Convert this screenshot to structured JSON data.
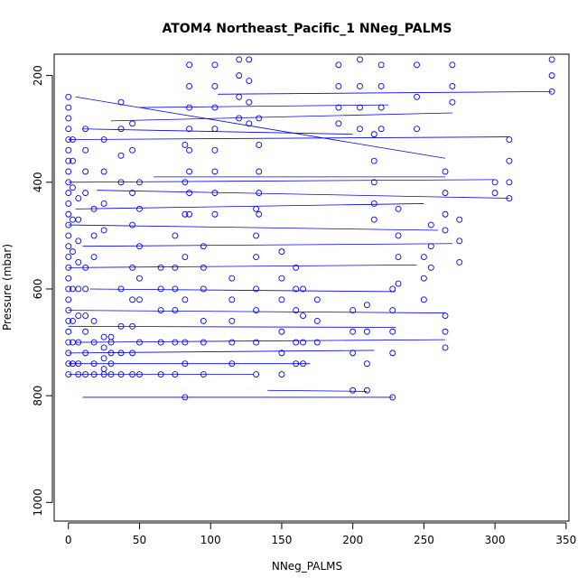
{
  "chart_data": {
    "type": "scatter",
    "title": "ATOM4 Northeast_Pacific_1 NNeg_PALMS",
    "xlabel": "NNeg_PALMS",
    "ylabel": "Pressure (mbar)",
    "xlim": [
      -10,
      352
    ],
    "ylim": [
      1035,
      160
    ],
    "y_reversed": true,
    "x_ticks": [
      0,
      50,
      100,
      150,
      200,
      250,
      300,
      350
    ],
    "y_ticks": [
      200,
      400,
      600,
      800,
      1000
    ],
    "grid": false,
    "legend": "none",
    "marker": "open-circle",
    "colors": {
      "series": "#0000ff",
      "axis": "#000000"
    },
    "connecting_lines": [
      {
        "from": [
          5,
          240
        ],
        "to": [
          265,
          355
        ]
      },
      {
        "from": [
          0,
          320
        ],
        "to": [
          310,
          315
        ]
      },
      {
        "from": [
          10,
          300
        ],
        "to": [
          200,
          310
        ]
      },
      {
        "from": [
          30,
          285
        ],
        "to": [
          270,
          270
        ]
      },
      {
        "from": [
          50,
          260
        ],
        "to": [
          225,
          255
        ]
      },
      {
        "from": [
          105,
          235
        ],
        "to": [
          340,
          230
        ]
      },
      {
        "from": [
          0,
          400
        ],
        "to": [
          300,
          395
        ]
      },
      {
        "from": [
          20,
          415
        ],
        "to": [
          310,
          430
        ]
      },
      {
        "from": [
          60,
          390
        ],
        "to": [
          265,
          390
        ]
      },
      {
        "from": [
          5,
          450
        ],
        "to": [
          250,
          440
        ]
      },
      {
        "from": [
          0,
          480
        ],
        "to": [
          260,
          490
        ]
      },
      {
        "from": [
          10,
          520
        ],
        "to": [
          270,
          515
        ]
      },
      {
        "from": [
          0,
          560
        ],
        "to": [
          245,
          555
        ]
      },
      {
        "from": [
          15,
          600
        ],
        "to": [
          230,
          605
        ]
      },
      {
        "from": [
          0,
          640
        ],
        "to": [
          265,
          645
        ]
      },
      {
        "from": [
          0,
          670
        ],
        "to": [
          230,
          672
        ]
      },
      {
        "from": [
          5,
          700
        ],
        "to": [
          265,
          695
        ]
      },
      {
        "from": [
          0,
          720
        ],
        "to": [
          215,
          715
        ]
      },
      {
        "from": [
          0,
          740
        ],
        "to": [
          170,
          740
        ]
      },
      {
        "from": [
          0,
          760
        ],
        "to": [
          130,
          760
        ]
      },
      {
        "from": [
          10,
          803
        ],
        "to": [
          228,
          803
        ]
      },
      {
        "from": [
          140,
          790
        ],
        "to": [
          210,
          792
        ]
      }
    ],
    "series": [
      {
        "points": [
          [
            0,
            240
          ],
          [
            0,
            260
          ],
          [
            0,
            280
          ],
          [
            0,
            300
          ],
          [
            0,
            320
          ],
          [
            0,
            340
          ],
          [
            0,
            360
          ],
          [
            0,
            380
          ],
          [
            0,
            400
          ],
          [
            0,
            420
          ],
          [
            0,
            440
          ],
          [
            0,
            460
          ],
          [
            0,
            480
          ],
          [
            0,
            500
          ],
          [
            0,
            520
          ],
          [
            0,
            540
          ],
          [
            0,
            560
          ],
          [
            0,
            580
          ],
          [
            0,
            600
          ],
          [
            0,
            620
          ],
          [
            0,
            640
          ],
          [
            0,
            660
          ],
          [
            0,
            680
          ],
          [
            0,
            700
          ],
          [
            0,
            720
          ],
          [
            0,
            740
          ],
          [
            0,
            760
          ],
          [
            3,
            320
          ],
          [
            3,
            360
          ],
          [
            3,
            410
          ],
          [
            3,
            470
          ],
          [
            3,
            530
          ],
          [
            3,
            600
          ],
          [
            3,
            660
          ],
          [
            3,
            700
          ],
          [
            3,
            740
          ],
          [
            7,
            430
          ],
          [
            7,
            470
          ],
          [
            7,
            510
          ],
          [
            7,
            550
          ],
          [
            7,
            600
          ],
          [
            7,
            650
          ],
          [
            7,
            700
          ],
          [
            7,
            740
          ],
          [
            7,
            760
          ],
          [
            12,
            300
          ],
          [
            12,
            340
          ],
          [
            12,
            380
          ],
          [
            12,
            420
          ],
          [
            12,
            560
          ],
          [
            12,
            600
          ],
          [
            12,
            650
          ],
          [
            12,
            680
          ],
          [
            12,
            720
          ],
          [
            12,
            760
          ],
          [
            18,
            450
          ],
          [
            18,
            500
          ],
          [
            18,
            540
          ],
          [
            18,
            660
          ],
          [
            18,
            700
          ],
          [
            18,
            740
          ],
          [
            18,
            760
          ],
          [
            25,
            320
          ],
          [
            25,
            380
          ],
          [
            25,
            440
          ],
          [
            25,
            490
          ],
          [
            25,
            690
          ],
          [
            25,
            710
          ],
          [
            25,
            730
          ],
          [
            25,
            750
          ],
          [
            25,
            760
          ],
          [
            30,
            690
          ],
          [
            30,
            700
          ],
          [
            30,
            720
          ],
          [
            30,
            740
          ],
          [
            30,
            760
          ],
          [
            37,
            250
          ],
          [
            37,
            300
          ],
          [
            37,
            350
          ],
          [
            37,
            400
          ],
          [
            37,
            600
          ],
          [
            37,
            670
          ],
          [
            37,
            720
          ],
          [
            37,
            760
          ],
          [
            45,
            290
          ],
          [
            45,
            340
          ],
          [
            45,
            420
          ],
          [
            45,
            480
          ],
          [
            45,
            560
          ],
          [
            45,
            620
          ],
          [
            45,
            670
          ],
          [
            45,
            720
          ],
          [
            45,
            760
          ],
          [
            50,
            400
          ],
          [
            50,
            450
          ],
          [
            50,
            520
          ],
          [
            50,
            580
          ],
          [
            50,
            620
          ],
          [
            50,
            700
          ],
          [
            50,
            760
          ],
          [
            65,
            560
          ],
          [
            65,
            600
          ],
          [
            65,
            640
          ],
          [
            65,
            700
          ],
          [
            65,
            760
          ],
          [
            75,
            500
          ],
          [
            75,
            560
          ],
          [
            75,
            600
          ],
          [
            75,
            640
          ],
          [
            75,
            700
          ],
          [
            75,
            760
          ],
          [
            82,
            330
          ],
          [
            82,
            400
          ],
          [
            82,
            460
          ],
          [
            82,
            540
          ],
          [
            82,
            620
          ],
          [
            82,
            700
          ],
          [
            82,
            740
          ],
          [
            82,
            803
          ],
          [
            85,
            180
          ],
          [
            85,
            220
          ],
          [
            85,
            260
          ],
          [
            85,
            300
          ],
          [
            85,
            340
          ],
          [
            85,
            380
          ],
          [
            85,
            420
          ],
          [
            85,
            460
          ],
          [
            95,
            520
          ],
          [
            95,
            560
          ],
          [
            95,
            600
          ],
          [
            95,
            660
          ],
          [
            95,
            700
          ],
          [
            95,
            760
          ],
          [
            103,
            180
          ],
          [
            103,
            220
          ],
          [
            103,
            260
          ],
          [
            103,
            300
          ],
          [
            103,
            340
          ],
          [
            103,
            380
          ],
          [
            103,
            420
          ],
          [
            103,
            460
          ],
          [
            115,
            580
          ],
          [
            115,
            620
          ],
          [
            115,
            660
          ],
          [
            115,
            700
          ],
          [
            115,
            740
          ],
          [
            120,
            170
          ],
          [
            120,
            200
          ],
          [
            120,
            240
          ],
          [
            120,
            280
          ],
          [
            127,
            170
          ],
          [
            127,
            210
          ],
          [
            127,
            250
          ],
          [
            127,
            290
          ],
          [
            132,
            450
          ],
          [
            132,
            500
          ],
          [
            132,
            540
          ],
          [
            132,
            600
          ],
          [
            132,
            640
          ],
          [
            132,
            700
          ],
          [
            132,
            760
          ],
          [
            134,
            280
          ],
          [
            134,
            330
          ],
          [
            134,
            380
          ],
          [
            134,
            420
          ],
          [
            134,
            460
          ],
          [
            150,
            530
          ],
          [
            150,
            580
          ],
          [
            150,
            620
          ],
          [
            150,
            680
          ],
          [
            150,
            720
          ],
          [
            150,
            760
          ],
          [
            160,
            560
          ],
          [
            160,
            600
          ],
          [
            160,
            640
          ],
          [
            160,
            700
          ],
          [
            160,
            740
          ],
          [
            165,
            600
          ],
          [
            165,
            650
          ],
          [
            165,
            700
          ],
          [
            165,
            740
          ],
          [
            175,
            620
          ],
          [
            175,
            660
          ],
          [
            175,
            700
          ],
          [
            190,
            180
          ],
          [
            190,
            220
          ],
          [
            190,
            260
          ],
          [
            190,
            290
          ],
          [
            200,
            640
          ],
          [
            200,
            680
          ],
          [
            200,
            720
          ],
          [
            200,
            790
          ],
          [
            205,
            170
          ],
          [
            205,
            220
          ],
          [
            205,
            260
          ],
          [
            205,
            300
          ],
          [
            210,
            630
          ],
          [
            210,
            680
          ],
          [
            210,
            740
          ],
          [
            210,
            790
          ],
          [
            215,
            310
          ],
          [
            215,
            360
          ],
          [
            215,
            400
          ],
          [
            215,
            440
          ],
          [
            215,
            470
          ],
          [
            220,
            180
          ],
          [
            220,
            220
          ],
          [
            220,
            260
          ],
          [
            220,
            300
          ],
          [
            228,
            600
          ],
          [
            228,
            640
          ],
          [
            228,
            680
          ],
          [
            228,
            720
          ],
          [
            228,
            803
          ],
          [
            232,
            450
          ],
          [
            232,
            500
          ],
          [
            232,
            540
          ],
          [
            232,
            590
          ],
          [
            245,
            180
          ],
          [
            245,
            240
          ],
          [
            245,
            300
          ],
          [
            250,
            540
          ],
          [
            250,
            580
          ],
          [
            250,
            620
          ],
          [
            255,
            480
          ],
          [
            255,
            520
          ],
          [
            255,
            560
          ],
          [
            265,
            380
          ],
          [
            265,
            420
          ],
          [
            265,
            460
          ],
          [
            265,
            490
          ],
          [
            265,
            650
          ],
          [
            265,
            680
          ],
          [
            265,
            710
          ],
          [
            270,
            180
          ],
          [
            270,
            220
          ],
          [
            270,
            250
          ],
          [
            275,
            470
          ],
          [
            275,
            510
          ],
          [
            275,
            550
          ],
          [
            300,
            400
          ],
          [
            300,
            420
          ],
          [
            310,
            320
          ],
          [
            310,
            360
          ],
          [
            310,
            400
          ],
          [
            310,
            430
          ],
          [
            340,
            170
          ],
          [
            340,
            200
          ],
          [
            340,
            230
          ]
        ]
      }
    ]
  }
}
